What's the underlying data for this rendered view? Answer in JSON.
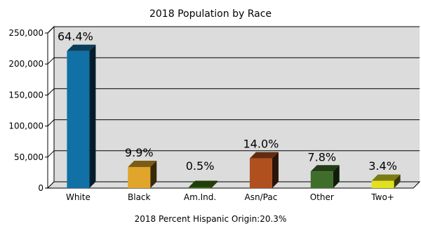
{
  "chart_data": {
    "type": "bar",
    "title": "2018 Population by Race",
    "footnote": "2018 Percent Hispanic Origin:20.3%",
    "categories": [
      "White",
      "Black",
      "Am.Ind.",
      "Asn/Pac",
      "Other",
      "Two+"
    ],
    "values": [
      221000,
      34000,
      1700,
      48000,
      26800,
      11700
    ],
    "labels": [
      "64.4%",
      "9.9%",
      "0.5%",
      "14.0%",
      "7.8%",
      "3.4%"
    ],
    "colors": [
      "#1170a5",
      "#e0a52a",
      "#3b6e12",
      "#b0501f",
      "#3e6e2a",
      "#e0e020"
    ],
    "ylim": [
      0,
      250000
    ],
    "yticks": [
      0,
      50000,
      100000,
      150000,
      200000,
      250000
    ],
    "ytick_labels": [
      "0",
      "50,000",
      "100,000",
      "150,000",
      "200,000",
      "250,000"
    ],
    "grid": true,
    "style": {
      "plot_background": "#dcdcdc",
      "wall_color": "#ffffff",
      "gridline_color": "#000000"
    }
  }
}
